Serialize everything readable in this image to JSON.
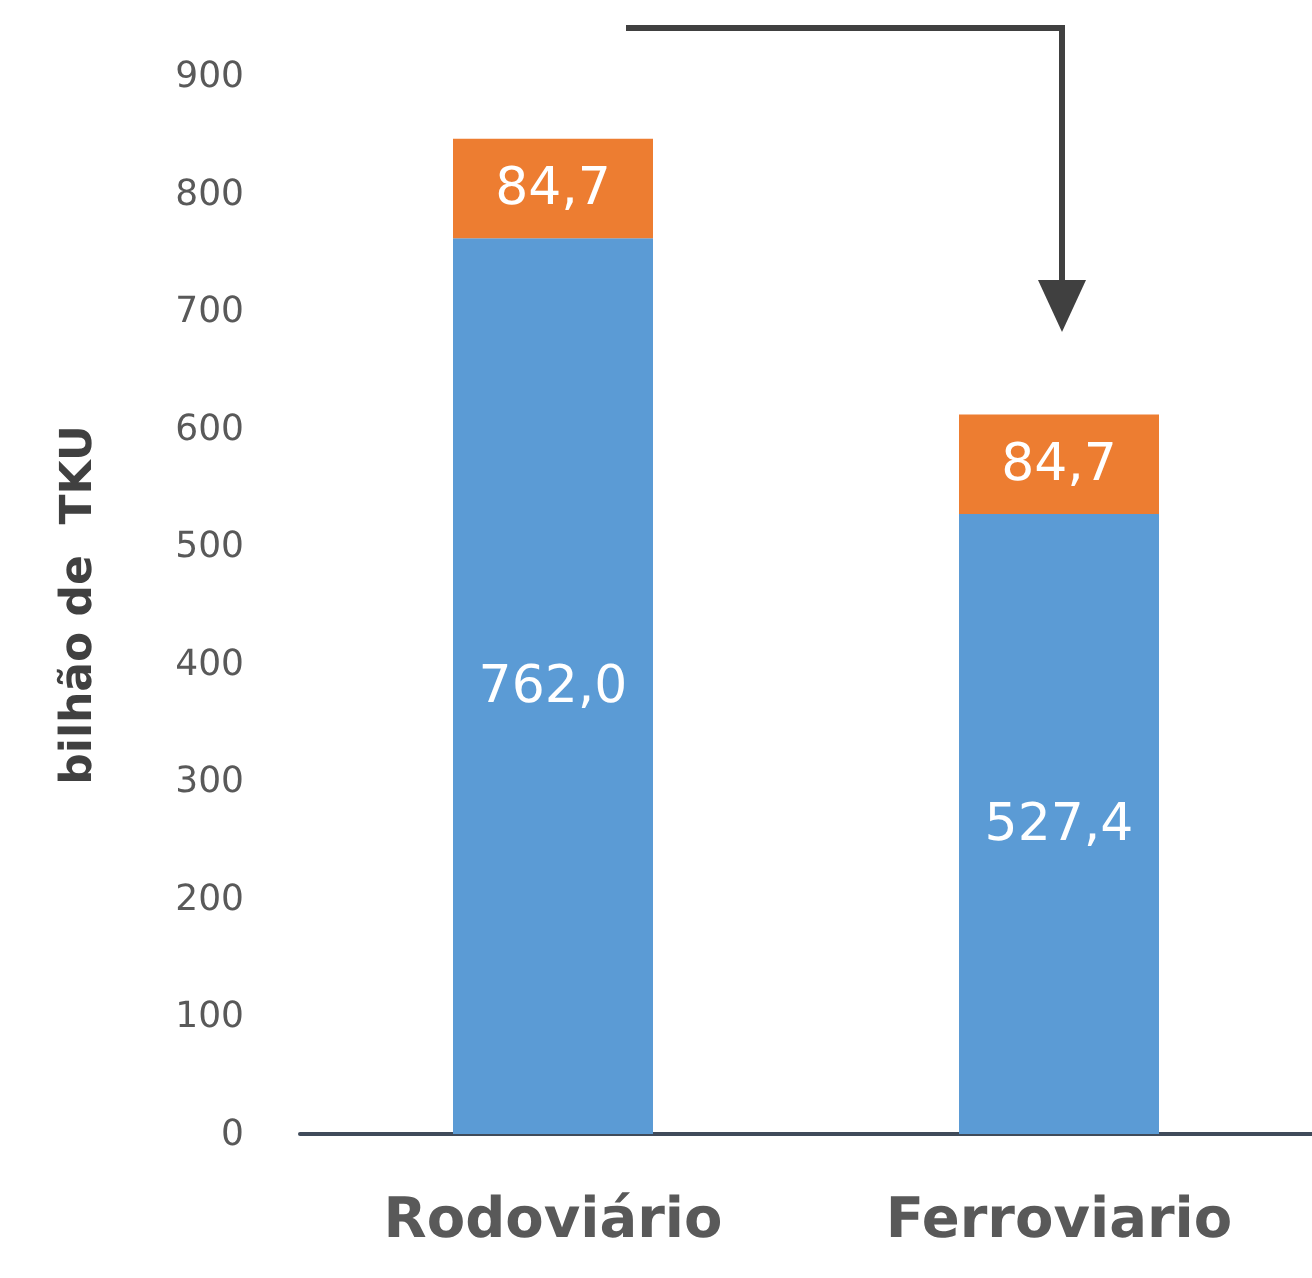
{
  "chart_data": {
    "type": "bar",
    "stacked": true,
    "ylabel": "bilhão de  TKU",
    "categories": [
      "Rodoviário",
      "Ferroviario"
    ],
    "series": [
      {
        "color": "#5b9bd5",
        "values": [
          762.0,
          527.4
        ],
        "value_labels": [
          "762,0",
          "527,4"
        ]
      },
      {
        "color": "#ed7d31",
        "values": [
          84.7,
          84.7
        ],
        "value_labels": [
          "84,7",
          "84,7"
        ]
      }
    ],
    "ylim": [
      0,
      900
    ],
    "yticks": [
      0,
      100,
      200,
      300,
      400,
      500,
      600,
      700,
      800,
      900
    ],
    "grid": false
  }
}
